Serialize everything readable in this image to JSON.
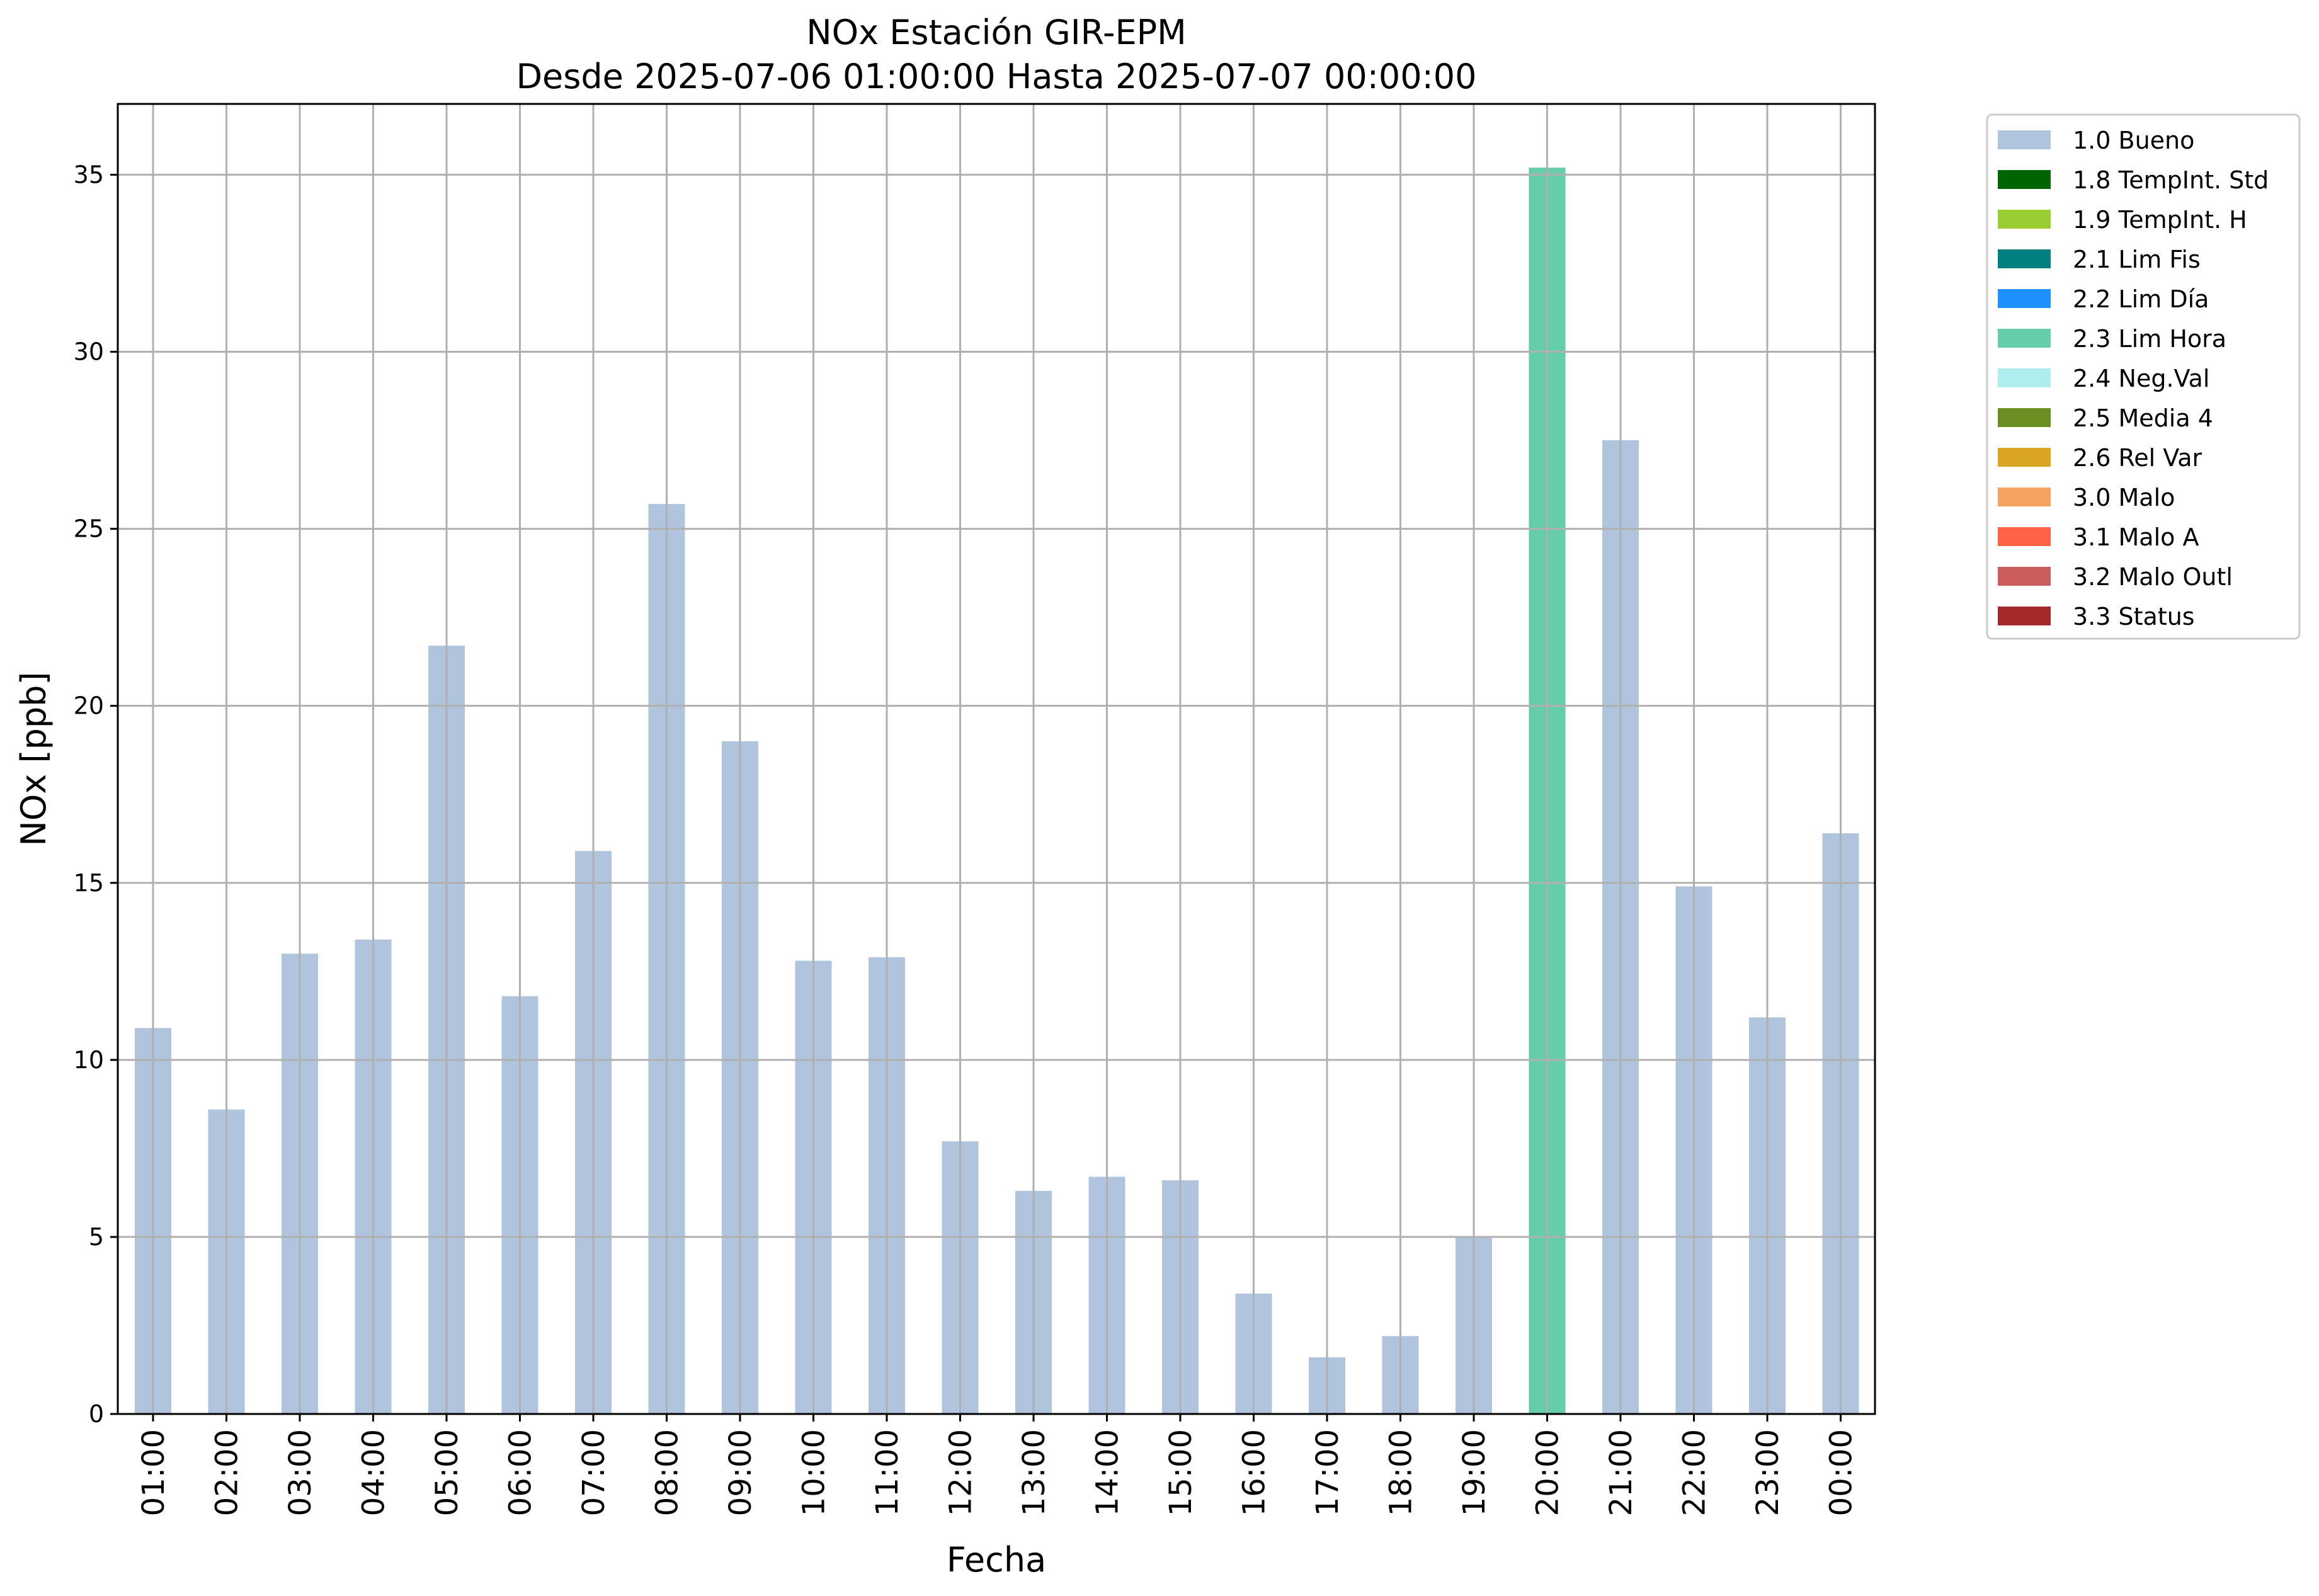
{
  "chart_data": {
    "type": "bar",
    "title": "NOx Estación GIR-EPM",
    "subtitle": "Desde 2025-07-06 01:00:00 Hasta 2025-07-07 00:00:00",
    "xlabel": "Fecha",
    "ylabel": "NOx [ppb]",
    "ylim": [
      0,
      37
    ],
    "yticks": [
      0,
      5,
      10,
      15,
      20,
      25,
      30,
      35
    ],
    "grid": true,
    "legend_position": "outside-top-right",
    "categories": [
      "01:00",
      "02:00",
      "03:00",
      "04:00",
      "05:00",
      "06:00",
      "07:00",
      "08:00",
      "09:00",
      "10:00",
      "11:00",
      "12:00",
      "13:00",
      "14:00",
      "15:00",
      "16:00",
      "17:00",
      "18:00",
      "19:00",
      "20:00",
      "21:00",
      "22:00",
      "23:00",
      "00:00"
    ],
    "values": [
      10.9,
      8.6,
      13.0,
      13.4,
      21.7,
      11.8,
      15.9,
      25.7,
      19.0,
      12.8,
      12.9,
      7.7,
      6.3,
      6.7,
      6.6,
      3.4,
      1.6,
      2.2,
      5.0,
      35.2,
      27.5,
      14.9,
      11.2,
      16.4
    ],
    "flags": [
      "1.0 Bueno",
      "1.0 Bueno",
      "1.0 Bueno",
      "1.0 Bueno",
      "1.0 Bueno",
      "1.0 Bueno",
      "1.0 Bueno",
      "1.0 Bueno",
      "1.0 Bueno",
      "1.0 Bueno",
      "1.0 Bueno",
      "1.0 Bueno",
      "1.0 Bueno",
      "1.0 Bueno",
      "1.0 Bueno",
      "1.0 Bueno",
      "1.0 Bueno",
      "1.0 Bueno",
      "1.0 Bueno",
      "2.3 Lim Hora",
      "1.0 Bueno",
      "1.0 Bueno",
      "1.0 Bueno",
      "1.0 Bueno"
    ],
    "legend": [
      {
        "name": "1.0 Bueno",
        "color": "#b0c4de"
      },
      {
        "name": "1.8 TempInt. Std",
        "color": "#006400"
      },
      {
        "name": "1.9 TempInt. H",
        "color": "#9acd32"
      },
      {
        "name": "2.1 Lim Fis",
        "color": "#008080"
      },
      {
        "name": "2.2 Lim Día",
        "color": "#1e90ff"
      },
      {
        "name": "2.3 Lim Hora",
        "color": "#66cdaa"
      },
      {
        "name": "2.4 Neg.Val",
        "color": "#afeeee"
      },
      {
        "name": "2.5 Media 4",
        "color": "#6b8e23"
      },
      {
        "name": "2.6 Rel Var",
        "color": "#daa520"
      },
      {
        "name": "3.0 Malo",
        "color": "#f4a460"
      },
      {
        "name": "3.1 Malo A",
        "color": "#ff6347"
      },
      {
        "name": "3.2 Malo Outl",
        "color": "#cd5c5c"
      },
      {
        "name": "3.3 Status",
        "color": "#a52a2a"
      }
    ]
  }
}
